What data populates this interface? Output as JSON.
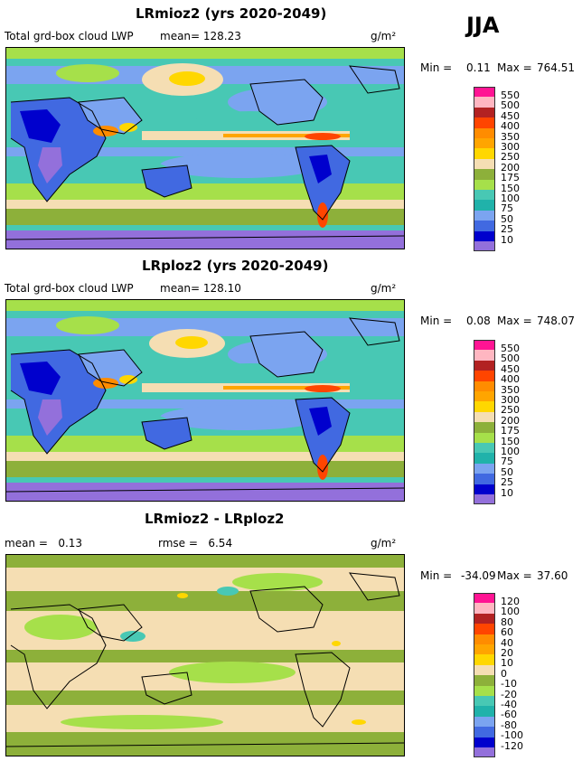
{
  "season": "JJA",
  "panels": [
    {
      "title": "LRmioz2 (yrs 2020-2049)",
      "left_label": "Total grd-box cloud LWP",
      "mean_text": "mean= 128.23",
      "units": "g/m²",
      "min_label": "Min =",
      "min_value": "0.11",
      "max_label": "Max =",
      "max_value": "764.51",
      "legend_labels": [
        "550",
        "500",
        "450",
        "400",
        "350",
        "300",
        "250",
        "200",
        "175",
        "150",
        "100",
        "75",
        "50",
        "25",
        "10"
      ]
    },
    {
      "title": "LRploz2 (yrs 2020-2049)",
      "left_label": "Total grd-box cloud LWP",
      "mean_text": "mean= 128.10",
      "units": "g/m²",
      "min_label": "Min =",
      "min_value": "0.08",
      "max_label": "Max =",
      "max_value": "748.07",
      "legend_labels": [
        "550",
        "500",
        "450",
        "400",
        "350",
        "300",
        "250",
        "200",
        "175",
        "150",
        "100",
        "75",
        "50",
        "25",
        "10"
      ]
    },
    {
      "title": "LRmioz2 - LRploz2",
      "left_label": "mean =   0.13",
      "mean_text": "rmse =   6.54",
      "units": "g/m²",
      "min_label": "Min =",
      "min_value": "-34.09",
      "max_label": "Max =",
      "max_value": "37.60",
      "legend_labels": [
        "120",
        "100",
        "80",
        "60",
        "40",
        "20",
        "10",
        "0",
        "-10",
        "-20",
        "-40",
        "-60",
        "-80",
        "-100",
        "-120"
      ]
    }
  ],
  "colors": {
    "abs_scale": [
      "#ff1493",
      "#ffb6c1",
      "#b22222",
      "#ff4500",
      "#ff8c00",
      "#ffa500",
      "#ffd700",
      "#f5deb3",
      "#8db03a",
      "#a6e04a",
      "#48c8b4",
      "#20b2aa",
      "#7ba4f0",
      "#4169e1",
      "#0000cd",
      "#9370db"
    ],
    "diff_scale": [
      "#ff1493",
      "#ffb6c1",
      "#b22222",
      "#ff4500",
      "#ff8c00",
      "#ffa500",
      "#ffd700",
      "#f5deb3",
      "#8db03a",
      "#a6e04a",
      "#48c8b4",
      "#20b2aa",
      "#7ba4f0",
      "#4169e1",
      "#0000cd",
      "#9370db"
    ]
  }
}
